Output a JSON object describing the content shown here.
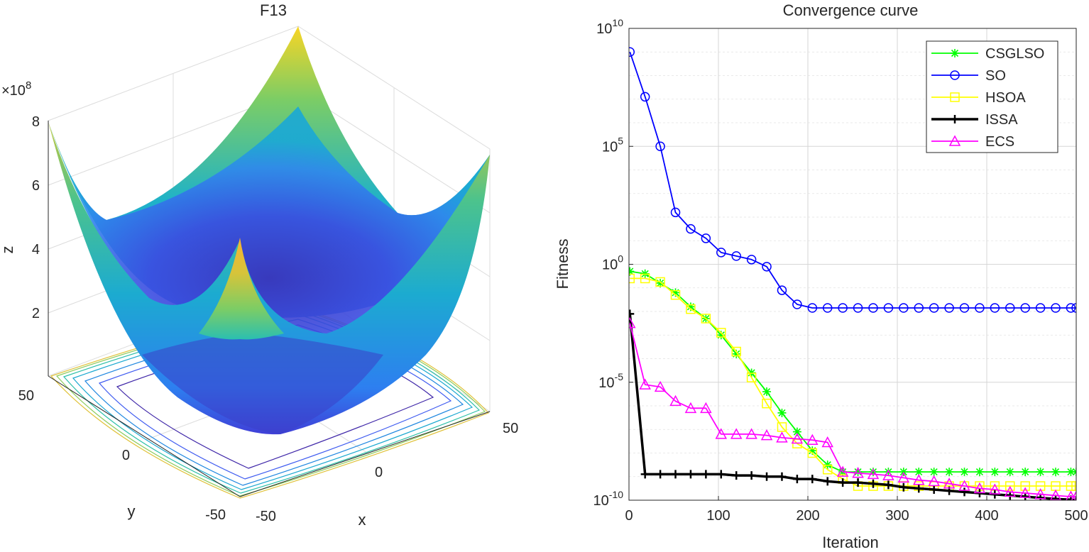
{
  "chart_data": [
    {
      "type": "surface",
      "title": "F13",
      "xlabel": "x",
      "ylabel": "y",
      "zlabel": "z",
      "z_exponent_label": "×10",
      "z_exponent_power": "8",
      "x_ticks": [
        "-50",
        "0",
        "50"
      ],
      "y_ticks": [
        "-50",
        "0",
        "50"
      ],
      "z_ticks": [
        "2",
        "4",
        "6",
        "8"
      ],
      "x_range": [
        -50,
        50
      ],
      "y_range": [
        -50,
        50
      ],
      "z_range": [
        0,
        800000000.0
      ],
      "corner_peaks": [
        810000000.0,
        810000000.0,
        810000000.0,
        810000000.0
      ],
      "contour_levels": 7,
      "colormap": [
        "#3e26a8",
        "#2e6ff2",
        "#1aa6d8",
        "#2bbfb0",
        "#7ccd65",
        "#d3c13a",
        "#f9d525"
      ]
    },
    {
      "type": "line",
      "title": "Convergence curve",
      "xlabel": "Iteration",
      "ylabel": "Fitness",
      "yscale": "log",
      "xlim": [
        0,
        500
      ],
      "ylim_exp": [
        -10,
        10
      ],
      "x_ticks": [
        "0",
        "100",
        "200",
        "300",
        "400",
        "500"
      ],
      "y_tick_base": "10",
      "y_tick_exps": [
        "-10",
        "-5",
        "0",
        "5",
        "10"
      ],
      "legend_position": "top-right",
      "x": [
        1,
        18,
        35,
        52,
        69,
        86,
        103,
        120,
        137,
        154,
        171,
        188,
        205,
        222,
        239,
        256,
        273,
        290,
        307,
        324,
        341,
        358,
        375,
        392,
        409,
        426,
        443,
        460,
        477,
        494,
        500
      ],
      "series": [
        {
          "name": "CSGLSO",
          "color": "#00ff00",
          "marker": "asterisk",
          "log10": [
            -0.3,
            -0.4,
            -0.8,
            -1.2,
            -1.8,
            -2.3,
            -3.0,
            -3.8,
            -4.6,
            -5.4,
            -6.3,
            -7.1,
            -7.9,
            -8.5,
            -8.8,
            -8.8,
            -8.8,
            -8.8,
            -8.8,
            -8.8,
            -8.8,
            -8.8,
            -8.8,
            -8.8,
            -8.8,
            -8.8,
            -8.8,
            -8.8,
            -8.8,
            -8.8,
            -8.8
          ]
        },
        {
          "name": "SO",
          "color": "#0000ff",
          "marker": "circle",
          "log10": [
            9.0,
            7.1,
            5.0,
            2.2,
            1.5,
            1.1,
            0.5,
            0.35,
            0.2,
            -0.1,
            -1.1,
            -1.7,
            -1.85,
            -1.85,
            -1.85,
            -1.85,
            -1.85,
            -1.85,
            -1.85,
            -1.85,
            -1.85,
            -1.85,
            -1.85,
            -1.85,
            -1.85,
            -1.85,
            -1.85,
            -1.85,
            -1.85,
            -1.85,
            -1.85
          ]
        },
        {
          "name": "HSOA",
          "color": "#ffff00",
          "marker": "square",
          "log10": [
            -0.6,
            -0.6,
            -0.75,
            -1.3,
            -1.9,
            -2.3,
            -2.9,
            -3.7,
            -4.8,
            -5.9,
            -6.9,
            -7.6,
            -8.0,
            -8.7,
            -9.1,
            -9.4,
            -9.4,
            -9.4,
            -9.4,
            -9.4,
            -9.4,
            -9.4,
            -9.4,
            -9.4,
            -9.4,
            -9.4,
            -9.4,
            -9.4,
            -9.4,
            -9.4,
            -9.4
          ]
        },
        {
          "name": "ISSA",
          "color": "#000000",
          "marker": "plus",
          "log10": [
            -2.1,
            -8.9,
            -8.9,
            -8.9,
            -8.9,
            -8.9,
            -8.9,
            -8.95,
            -8.95,
            -9.0,
            -9.0,
            -9.1,
            -9.1,
            -9.2,
            -9.25,
            -9.25,
            -9.3,
            -9.35,
            -9.45,
            -9.5,
            -9.55,
            -9.6,
            -9.65,
            -9.7,
            -9.75,
            -9.8,
            -9.85,
            -9.9,
            -9.95,
            -9.98,
            -10.0
          ]
        },
        {
          "name": "ECS",
          "color": "#ff00ff",
          "marker": "triangle",
          "log10": [
            -2.5,
            -5.1,
            -5.2,
            -5.8,
            -6.1,
            -6.1,
            -7.2,
            -7.2,
            -7.2,
            -7.25,
            -7.35,
            -7.4,
            -7.45,
            -7.55,
            -8.8,
            -8.85,
            -8.9,
            -8.95,
            -9.05,
            -9.15,
            -9.2,
            -9.3,
            -9.4,
            -9.5,
            -9.55,
            -9.65,
            -9.7,
            -9.75,
            -9.8,
            -9.85,
            -9.85
          ]
        }
      ]
    }
  ]
}
